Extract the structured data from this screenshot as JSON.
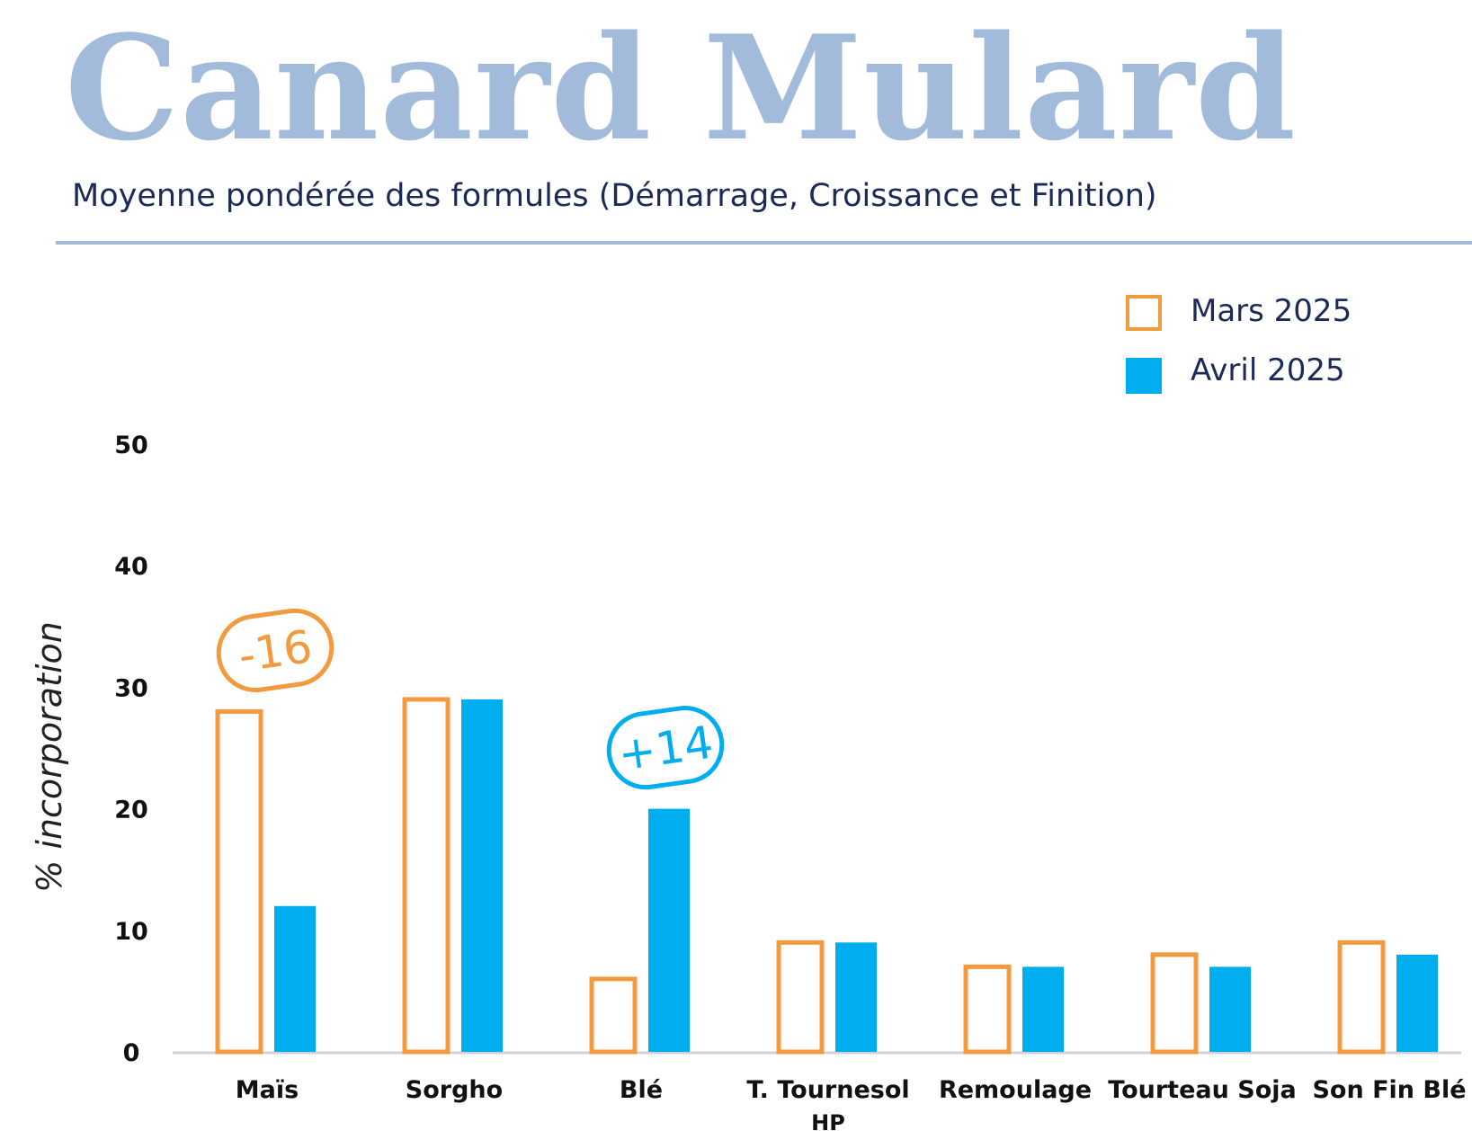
{
  "title": "Canard Mulard",
  "subtitle": "Moyenne pondérée des formules (Démarrage, Croissance et Finition)",
  "colors": {
    "mars": "#f29a3e",
    "avril": "#00aeef",
    "title": "#a3bbdb",
    "text": "#1b2a57"
  },
  "chart_data": {
    "type": "bar",
    "title": "",
    "xlabel": "",
    "ylabel": "% incorporation",
    "ylim": [
      0,
      50
    ],
    "yticks": [
      "0",
      "10",
      "20",
      "30",
      "40",
      "50"
    ],
    "grid": false,
    "legend_position": "top-right",
    "categories": [
      "Maïs",
      "Sorgho",
      "Blé",
      "T. Tournesol HP",
      "Remoulage",
      "Tourteau Soja",
      "Son Fin Blé"
    ],
    "category_lines": [
      [
        "Maïs"
      ],
      [
        "Sorgho"
      ],
      [
        "Blé"
      ],
      [
        "T. Tournesol",
        "HP"
      ],
      [
        "Remoulage"
      ],
      [
        "Tourteau Soja"
      ],
      [
        "Son Fin Blé"
      ]
    ],
    "series": [
      {
        "name": "Mars 2025",
        "style": "outline",
        "values": [
          28,
          29,
          6,
          9,
          7,
          8,
          9
        ]
      },
      {
        "name": "Avril 2025",
        "style": "filled",
        "values": [
          12,
          29,
          20,
          9,
          7,
          7,
          8
        ]
      }
    ],
    "annotations": [
      {
        "text": "-16",
        "category": "Maïs",
        "series": "Mars 2025"
      },
      {
        "text": "+14",
        "category": "Blé",
        "series": "Avril 2025"
      }
    ]
  }
}
